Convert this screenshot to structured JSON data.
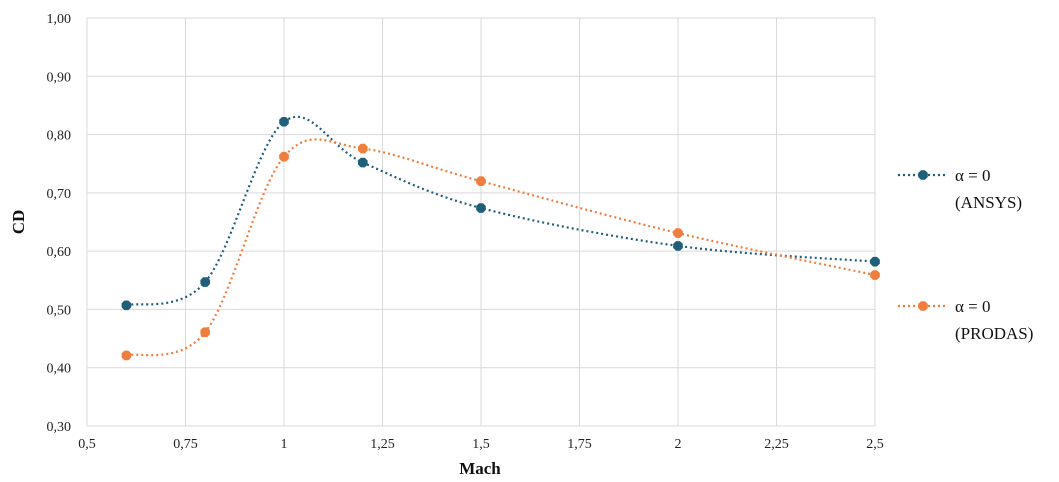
{
  "chart_data": {
    "type": "line",
    "xlabel": "Mach",
    "ylabel": "CD",
    "xlim": [
      0.5,
      2.5
    ],
    "ylim": [
      0.3,
      1.0
    ],
    "x_ticks": [
      "0,5",
      "0,75",
      "1",
      "1,25",
      "1,5",
      "1,75",
      "2",
      "2,25",
      "2,5"
    ],
    "x_tick_values": [
      0.5,
      0.75,
      1,
      1.25,
      1.5,
      1.75,
      2,
      2.25,
      2.5
    ],
    "y_ticks": [
      "0,30",
      "0,40",
      "0,50",
      "0,60",
      "0,70",
      "0,80",
      "0,90",
      "1,00"
    ],
    "y_tick_values": [
      0.3,
      0.4,
      0.5,
      0.6,
      0.7,
      0.8,
      0.9,
      1.0
    ],
    "grid": true,
    "legend_position": "right",
    "series": [
      {
        "name_line1": "α = 0",
        "name_line2": "(ANSYS)",
        "color": "#1f5f7a",
        "x": [
          0.6,
          0.8,
          1.0,
          1.2,
          1.5,
          2.0,
          2.5
        ],
        "y": [
          0.507,
          0.547,
          0.822,
          0.752,
          0.674,
          0.609,
          0.582
        ]
      },
      {
        "name_line1": "α = 0",
        "name_line2": "(PRODAS)",
        "color": "#ef7d3c",
        "x": [
          0.6,
          0.8,
          1.0,
          1.2,
          1.5,
          2.0,
          2.5
        ],
        "y": [
          0.421,
          0.461,
          0.762,
          0.776,
          0.72,
          0.631,
          0.559
        ]
      }
    ]
  }
}
